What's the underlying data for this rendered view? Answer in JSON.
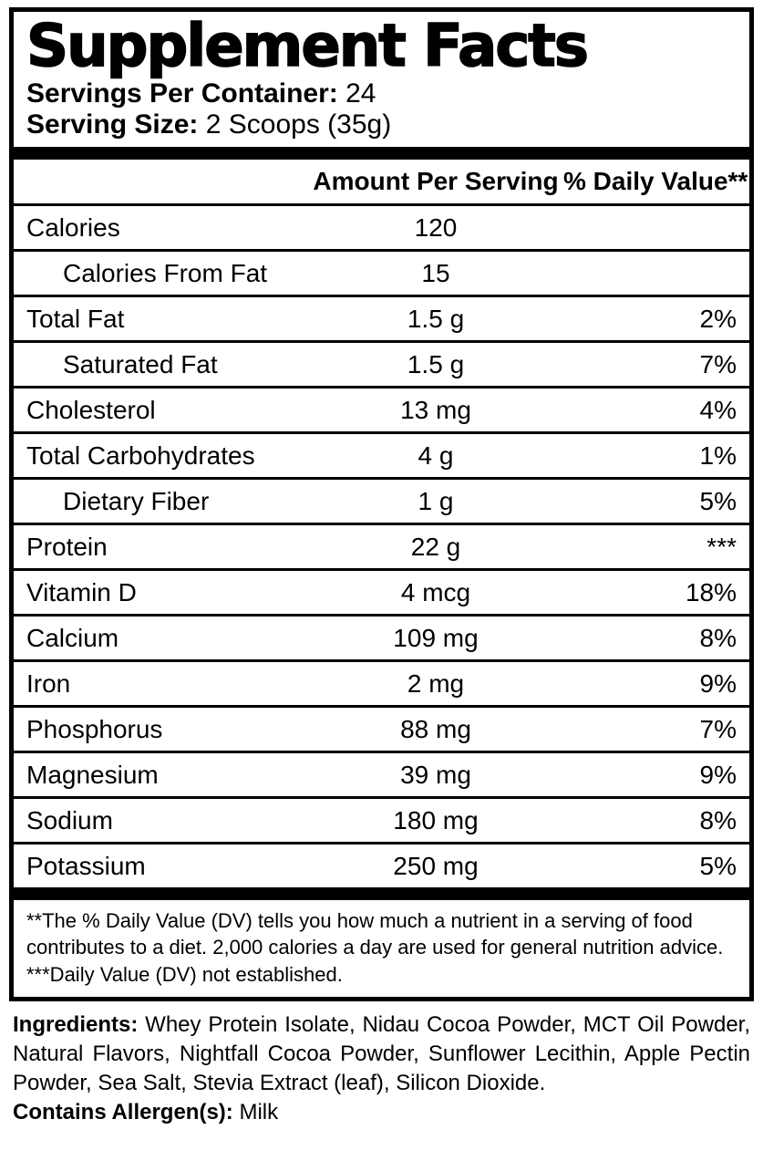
{
  "title": "Supplement Facts",
  "servings": {
    "per_container_label": "Servings Per Container:",
    "per_container_value": "24",
    "size_label": "Serving Size:",
    "size_value": "2 Scoops (35g)"
  },
  "header": {
    "amount": "Amount Per Serving",
    "dv": "% Daily Value**"
  },
  "rows": [
    {
      "name": "Calories",
      "amount": "120",
      "dv": "",
      "indent": false
    },
    {
      "name": "Calories From Fat",
      "amount": "15",
      "dv": "",
      "indent": true
    },
    {
      "name": "Total Fat",
      "amount": "1.5 g",
      "dv": "2%",
      "indent": false
    },
    {
      "name": "Saturated Fat",
      "amount": "1.5 g",
      "dv": "7%",
      "indent": true
    },
    {
      "name": "Cholesterol",
      "amount": "13 mg",
      "dv": "4%",
      "indent": false
    },
    {
      "name": "Total Carbohydrates",
      "amount": "4 g",
      "dv": "1%",
      "indent": false
    },
    {
      "name": "Dietary Fiber",
      "amount": "1 g",
      "dv": "5%",
      "indent": true
    },
    {
      "name": "Protein",
      "amount": "22 g",
      "dv": "***",
      "indent": false
    },
    {
      "name": "Vitamin D",
      "amount": "4 mcg",
      "dv": "18%",
      "indent": false
    },
    {
      "name": "Calcium",
      "amount": "109 mg",
      "dv": "8%",
      "indent": false
    },
    {
      "name": "Iron",
      "amount": "2 mg",
      "dv": "9%",
      "indent": false
    },
    {
      "name": "Phosphorus",
      "amount": "88 mg",
      "dv": "7%",
      "indent": false
    },
    {
      "name": "Magnesium",
      "amount": "39 mg",
      "dv": "9%",
      "indent": false
    },
    {
      "name": "Sodium",
      "amount": "180 mg",
      "dv": "8%",
      "indent": false
    },
    {
      "name": "Potassium",
      "amount": "250 mg",
      "dv": "5%",
      "indent": false
    }
  ],
  "footnotes": [
    "**The % Daily Value (DV) tells you how much a nutrient in a serving of food contributes to a diet. 2,000 calories a day are used for general nutrition advice.",
    "***Daily Value (DV) not established."
  ],
  "ingredients": {
    "label": "Ingredients:",
    "text": " Whey Protein Isolate, Nidau Cocoa Powder, MCT Oil Powder, Natural Flavors, Nightfall Cocoa Powder, Sunflower Lecithin, Apple Pectin Powder, Sea Salt, Stevia Extract (leaf), Silicon Dioxide.",
    "allergen_label": "Contains Allergen(s):",
    "allergen_value": " Milk"
  }
}
